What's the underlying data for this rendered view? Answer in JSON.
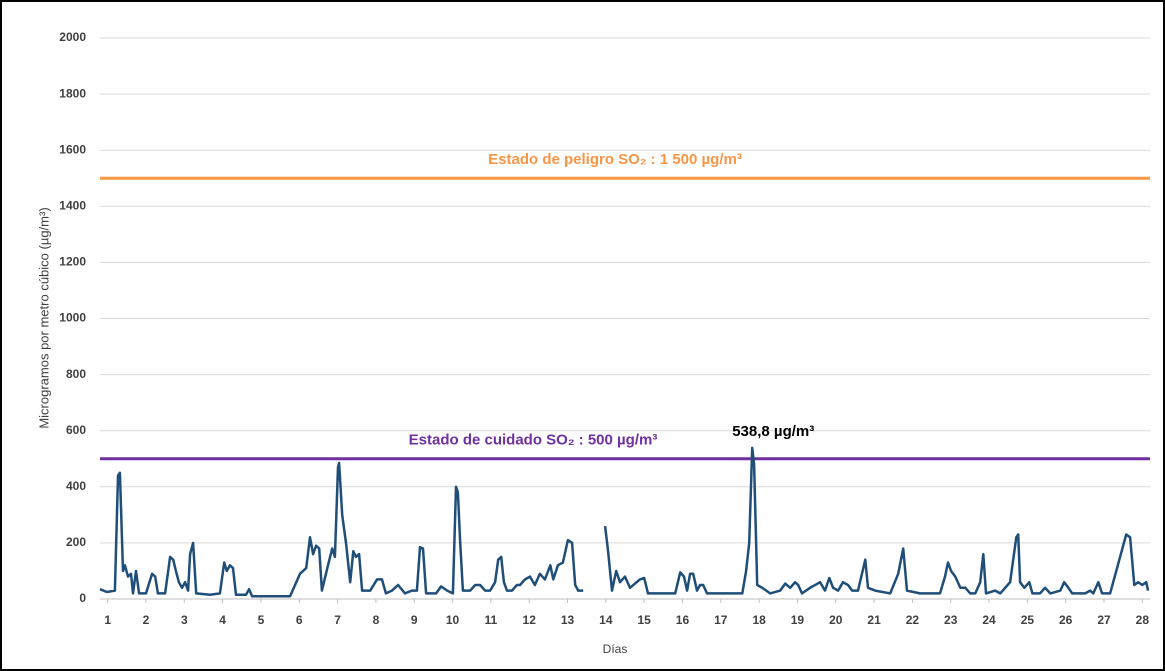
{
  "chart_data": {
    "type": "line",
    "ylabel": "Microgramos  por metro cúbico (µg/m³)",
    "xlabel": "Días",
    "color": "#1f4e79",
    "x": [
      0.8,
      0.98,
      1.19,
      1.27,
      1.32,
      1.4,
      1.45,
      1.53,
      1.61,
      1.66,
      1.74,
      1.82,
      2.0,
      2.16,
      2.24,
      2.31,
      2.5,
      2.63,
      2.71,
      2.78,
      2.86,
      2.94,
      3.02,
      3.1,
      3.15,
      3.23,
      3.31,
      3.67,
      3.93,
      4.04,
      4.11,
      4.19,
      4.27,
      4.35,
      4.61,
      4.69,
      4.77,
      5.76,
      6.02,
      6.18,
      6.28,
      6.36,
      6.44,
      6.52,
      6.59,
      6.75,
      6.86,
      6.93,
      7.01,
      7.04,
      7.12,
      7.22,
      7.33,
      7.41,
      7.48,
      7.56,
      7.64,
      7.85,
      8.03,
      8.16,
      8.26,
      8.42,
      8.58,
      8.76,
      8.94,
      9.07,
      9.15,
      9.23,
      9.31,
      9.57,
      9.7,
      9.86,
      10.01,
      10.09,
      10.14,
      10.2,
      10.27,
      10.46,
      10.59,
      10.72,
      10.85,
      10.98,
      11.11,
      11.19,
      11.27,
      11.34,
      11.42,
      11.55,
      11.68,
      11.76,
      11.89,
      12.02,
      12.15,
      12.28,
      12.41,
      12.55,
      12.63,
      12.75,
      12.88,
      13.01,
      13.12,
      13.2,
      13.28,
      13.41,
      13.7,
      13.98,
      14.06,
      14.16,
      14.27,
      14.37,
      14.5,
      14.63,
      14.89,
      15.0,
      15.1,
      15.68,
      15.81,
      15.94,
      16.04,
      16.12,
      16.2,
      16.28,
      16.38,
      16.46,
      16.54,
      16.64,
      16.98,
      17.37,
      17.56,
      17.66,
      17.74,
      17.82,
      17.87,
      17.95,
      18.08,
      18.29,
      18.55,
      18.68,
      18.81,
      18.94,
      19.02,
      19.12,
      19.33,
      19.59,
      19.72,
      19.83,
      19.93,
      20.06,
      20.19,
      20.32,
      20.43,
      20.58,
      20.77,
      20.84,
      21.03,
      21.42,
      21.63,
      21.76,
      21.86,
      22.2,
      22.72,
      22.85,
      22.93,
      23.01,
      23.12,
      23.25,
      23.38,
      23.51,
      23.64,
      23.77,
      23.85,
      23.92,
      24.16,
      24.29,
      24.55,
      24.71,
      24.76,
      24.81,
      24.92,
      25.05,
      25.13,
      25.33,
      25.46,
      25.6,
      25.86,
      25.96,
      26.07,
      26.17,
      26.51,
      26.64,
      26.72,
      26.85,
      26.95,
      27.16,
      27.42,
      27.58,
      27.68,
      27.79,
      27.89,
      28.0,
      28.1,
      28.15
    ],
    "values": [
      35,
      25,
      30,
      440,
      450,
      100,
      120,
      80,
      90,
      20,
      100,
      20,
      20,
      90,
      80,
      20,
      20,
      150,
      140,
      100,
      60,
      40,
      60,
      30,
      160,
      200,
      20,
      15,
      20,
      130,
      100,
      120,
      110,
      15,
      15,
      35,
      10,
      10,
      90,
      110,
      220,
      160,
      190,
      180,
      30,
      120,
      180,
      150,
      470,
      485,
      300,
      200,
      60,
      170,
      150,
      160,
      30,
      30,
      70,
      70,
      20,
      30,
      50,
      20,
      30,
      30,
      185,
      180,
      20,
      20,
      45,
      30,
      20,
      400,
      380,
      200,
      30,
      30,
      50,
      50,
      30,
      30,
      60,
      140,
      150,
      60,
      30,
      30,
      50,
      50,
      70,
      80,
      50,
      90,
      70,
      120,
      70,
      120,
      130,
      210,
      200,
      50,
      30,
      30,
      null,
      260,
      170,
      30,
      100,
      60,
      80,
      40,
      70,
      75,
      20,
      20,
      20,
      95,
      80,
      30,
      90,
      90,
      30,
      50,
      50,
      20,
      20,
      20,
      20,
      100,
      200,
      538.8,
      480,
      50,
      40,
      20,
      30,
      55,
      40,
      60,
      50,
      20,
      40,
      60,
      30,
      75,
      40,
      30,
      60,
      50,
      30,
      30,
      140,
      40,
      30,
      20,
      90,
      180,
      30,
      20,
      20,
      80,
      130,
      100,
      80,
      40,
      40,
      20,
      20,
      60,
      160,
      20,
      30,
      20,
      60,
      220,
      230,
      60,
      40,
      60,
      20,
      20,
      40,
      20,
      30,
      60,
      40,
      20,
      20,
      30,
      20,
      60,
      20,
      20,
      150,
      230,
      220,
      50,
      60,
      50,
      60,
      30
    ],
    "xlim": [
      0.8,
      28.2
    ],
    "xticks": [
      1,
      2,
      3,
      4,
      5,
      6,
      7,
      8,
      9,
      10,
      11,
      12,
      13,
      14,
      15,
      16,
      17,
      18,
      19,
      20,
      21,
      22,
      23,
      24,
      25,
      26,
      27,
      28
    ],
    "ylim": [
      0,
      2000
    ],
    "yticks": [
      0,
      200,
      400,
      600,
      800,
      1000,
      1200,
      1400,
      1600,
      1800,
      2000
    ],
    "grid": true,
    "reference_lines": [
      {
        "value": 1500,
        "label": "Estado  de peligro SO₂ : 1 500 µg/m³",
        "color": "#f79646"
      },
      {
        "value": 500,
        "label": "Estado  de cuidado SO₂ :  500 µg/m³",
        "color": "#7030a0"
      }
    ],
    "annotations": [
      {
        "x": 17.82,
        "y": 538.8,
        "label": "538,8 µg/m³"
      }
    ]
  }
}
